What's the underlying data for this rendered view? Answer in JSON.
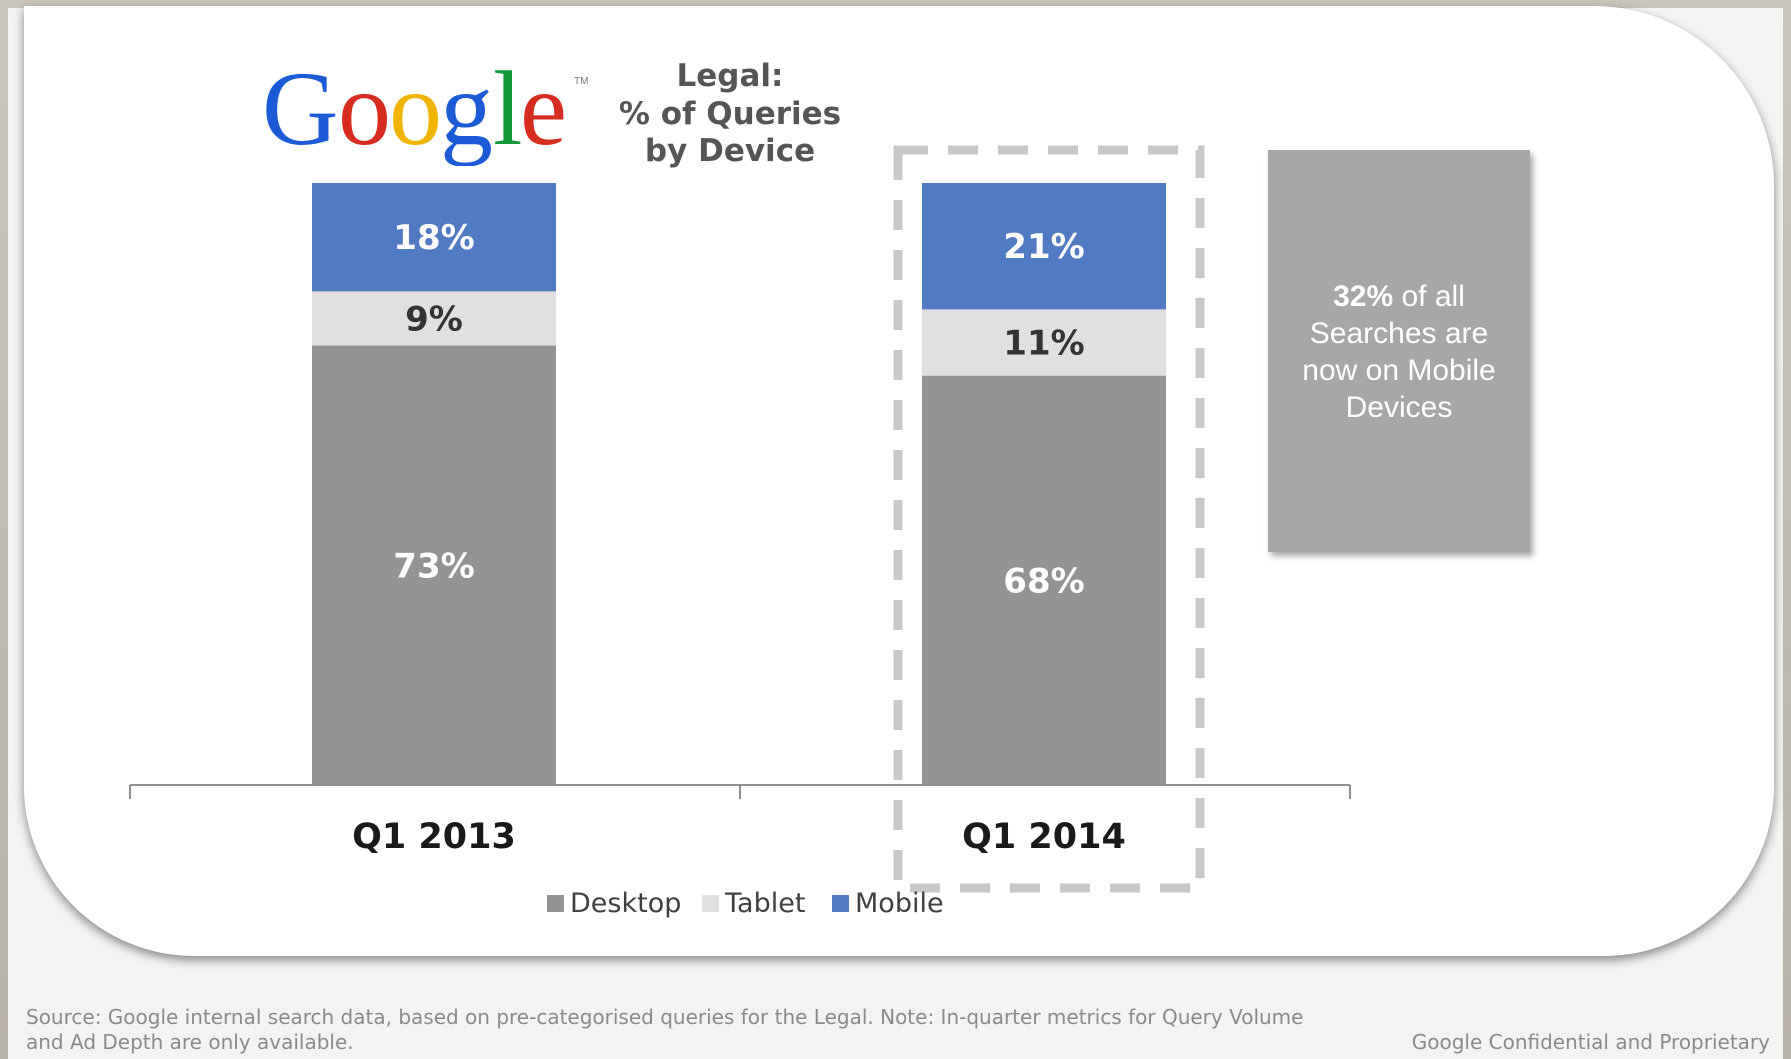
{
  "logo_text": "Google",
  "logo_tm": "TM",
  "title_lines": [
    "Legal:",
    "% of Queries",
    "by Device"
  ],
  "colors": {
    "desktop": "#939393",
    "tablet": "#e0e0e0",
    "mobile": "#507ac1",
    "callout": "#a6a7a9",
    "highlight_dash": "#c8c8c8"
  },
  "chart_data": {
    "type": "bar",
    "stacked": true,
    "categories": [
      "Q1 2013",
      "Q1 2014"
    ],
    "series": [
      {
        "name": "Desktop",
        "values": [
          73,
          68
        ],
        "labels": [
          "73%",
          "68%"
        ]
      },
      {
        "name": "Tablet",
        "values": [
          9,
          11
        ],
        "labels": [
          "9%",
          "11%"
        ]
      },
      {
        "name": "Mobile",
        "values": [
          18,
          21
        ],
        "labels": [
          "18%",
          "21%"
        ]
      }
    ],
    "ylim": [
      0,
      100
    ],
    "grid": false,
    "legend_position": "bottom",
    "highlighted_category": "Q1 2014"
  },
  "legend": [
    {
      "label": "Desktop",
      "color": "#939393"
    },
    {
      "label": "Tablet",
      "color": "#e0e0e0"
    },
    {
      "label": "Mobile",
      "color": "#507ac1"
    }
  ],
  "callout": {
    "bold": "32%",
    "rest_line1": " of all",
    "line2": "Searches are",
    "line3": "now on Mobile",
    "line4": "Devices"
  },
  "footer": {
    "source_line1": "Source: Google internal search data, based on pre-categorised queries for the Legal. Note: In-quarter metrics for Query Volume",
    "source_line2": "and Ad Depth are only available.",
    "confidential": "Google Confidential and Proprietary"
  }
}
